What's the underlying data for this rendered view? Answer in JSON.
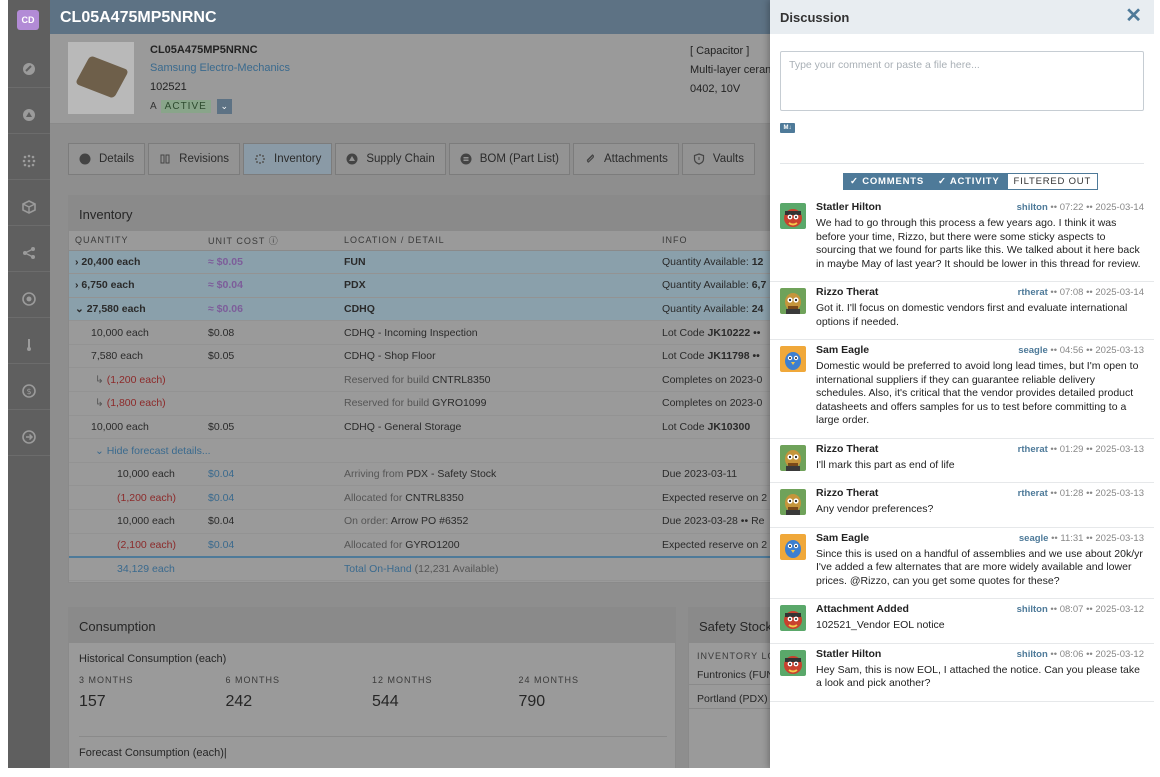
{
  "rail": {
    "badge": "CD"
  },
  "part": {
    "title": "CL05A475MP5NRNC",
    "name": "CL05A475MP5NRNC",
    "manufacturer": "Samsung Electro-Mechanics",
    "number": "102521",
    "revision": "A",
    "status": "ACTIVE",
    "category": "[ Capacitor ]",
    "desc": "Multi-layer ceran",
    "package": "0402, 10V"
  },
  "tabs": [
    {
      "label": "Details"
    },
    {
      "label": "Revisions"
    },
    {
      "label": "Inventory"
    },
    {
      "label": "Supply Chain"
    },
    {
      "label": "BOM (Part List)"
    },
    {
      "label": "Attachments"
    },
    {
      "label": "Vaults"
    }
  ],
  "inventory": {
    "title": "Inventory",
    "cols": {
      "qty": "QUANTITY",
      "cost": "UNIT COST",
      "loc": "LOCATION / DETAIL",
      "info": "INFO"
    },
    "rows": [
      {
        "qty": "20,400 each",
        "cost": "≈ $0.05",
        "loc": "FUN",
        "info_label": "Quantity Available: ",
        "info_val": "12"
      },
      {
        "qty": "6,750 each",
        "cost": "≈ $0.04",
        "loc": "PDX",
        "info_label": "Quantity Available: ",
        "info_val": "6,7"
      },
      {
        "qty": "27,580 each",
        "cost": "≈ $0.06",
        "loc": "CDHQ",
        "info_label": "Quantity Available: ",
        "info_val": "24"
      },
      {
        "qty": "10,000 each",
        "cost": "$0.08",
        "loc": "CDHQ - Incoming Inspection",
        "info_label": "Lot Code ",
        "info_val": "JK10222 ••"
      },
      {
        "qty": "7,580 each",
        "cost": "$0.05",
        "loc": "CDHQ - Shop Floor",
        "info_label": "Lot Code ",
        "info_val": "JK11798 ••"
      },
      {
        "qty": "(1,200 each)",
        "cost": "",
        "loc_dim": "Reserved for build ",
        "loc": "CNTRL8350",
        "info_label": "Completes on 2023-0",
        "info_val": ""
      },
      {
        "qty": "(1,800 each)",
        "cost": "",
        "loc_dim": "Reserved for build ",
        "loc": "GYRO1099",
        "info_label": "Completes on 2023-0",
        "info_val": ""
      },
      {
        "qty": "10,000 each",
        "cost": "$0.05",
        "loc": "CDHQ - General Storage",
        "info_label": "Lot Code ",
        "info_val": "JK10300"
      },
      {
        "qty": "Hide forecast details...",
        "cost": "",
        "loc": "",
        "info_label": "",
        "info_val": ""
      },
      {
        "qty": "10,000 each",
        "cost": "$0.04",
        "loc_dim": "Arriving from ",
        "loc": "PDX - Safety Stock",
        "info_label": "Due 2023-03-11",
        "info_val": ""
      },
      {
        "qty": "(1,200 each)",
        "cost": "$0.04",
        "loc_dim": "Allocated for ",
        "loc": "CNTRL8350",
        "info_label": "Expected reserve on 2",
        "info_val": ""
      },
      {
        "qty": "10,000 each",
        "cost": "$0.04",
        "loc_dim": "On order: ",
        "loc": "Arrow PO #6352",
        "info_label": "Due 2023-03-28 •• Re",
        "info_val": ""
      },
      {
        "qty": "(2,100 each)",
        "cost": "$0.04",
        "loc_dim": "Allocated for ",
        "loc": "GYRO1200",
        "info_label": "Expected reserve on 2",
        "info_val": ""
      }
    ],
    "total_qty": "34,129 each",
    "total_label": "Total On-Hand",
    "total_avail": "(12,231 Available)"
  },
  "consumption": {
    "title": "Consumption",
    "historical": "Historical Consumption (each)",
    "periods": [
      {
        "label": "3 MONTHS",
        "value": "157"
      },
      {
        "label": "6 MONTHS",
        "value": "242"
      },
      {
        "label": "12 MONTHS",
        "value": "544"
      },
      {
        "label": "24 MONTHS",
        "value": "790"
      }
    ],
    "forecast": "Forecast Consumption (each)|"
  },
  "safety": {
    "title": "Safety Stock",
    "col": "INVENTORY LO",
    "rows": [
      "Funtronics (FUN",
      "Portland (PDX)"
    ]
  },
  "discussion": {
    "title": "Discussion",
    "close": "✕",
    "placeholder": "Type your comment or paste a file here...",
    "md": "M↓",
    "filters": [
      "✓ COMMENTS",
      "✓ ACTIVITY",
      "FILTERED OUT"
    ],
    "messages": [
      {
        "author": "Statler Hilton",
        "user": "shilton",
        "time": "•• 07:22 •• 2025-03-14",
        "avatar": "statler",
        "body": "We had to go through this process a few years ago. I think it was before your time, Rizzo, but there were some sticky aspects to sourcing that we found for parts like this. We talked about it here back in maybe May of last year? It should be lower in this thread for review."
      },
      {
        "author": "Rizzo Therat",
        "user": "rtherat",
        "time": "•• 07:08 •• 2025-03-14",
        "avatar": "rizzo",
        "body": "Got it. I'll focus on domestic vendors first and evaluate international options if needed."
      },
      {
        "author": "Sam Eagle",
        "user": "seagle",
        "time": "•• 04:56 •• 2025-03-13",
        "avatar": "sam",
        "body": "Domestic would be preferred to avoid long lead times, but I'm open to international suppliers if they can guarantee reliable delivery schedules. Also, it's critical that the vendor provides detailed product datasheets and offers samples for us to test before committing to a large order."
      },
      {
        "author": "Rizzo Therat",
        "user": "rtherat",
        "time": "•• 01:29 •• 2025-03-13",
        "avatar": "rizzo",
        "body": "I'll mark this part as end of life"
      },
      {
        "author": "Rizzo Therat",
        "user": "rtherat",
        "time": "•• 01:28 •• 2025-03-13",
        "avatar": "rizzo",
        "body": "Any vendor preferences?"
      },
      {
        "author": "Sam Eagle",
        "user": "seagle",
        "time": "•• 11:31 •• 2025-03-13",
        "avatar": "sam",
        "body": "Since this is used on a handful of assemblies and we use about 20k/yr  I've added a few alternates that are more widely available and lower prices.  @Rizzo, can you get some quotes for these?"
      },
      {
        "author": "Attachment Added",
        "user": "shilton",
        "time": "•• 08:07 •• 2025-03-12",
        "avatar": "statler",
        "body": "102521_Vendor EOL notice"
      },
      {
        "author": "Statler Hilton",
        "user": "shilton",
        "time": "•• 08:06 •• 2025-03-12",
        "avatar": "statler",
        "body": "Hey Sam, this is now EOL, I attached the notice.  Can you please take a look and pick another?"
      }
    ]
  }
}
